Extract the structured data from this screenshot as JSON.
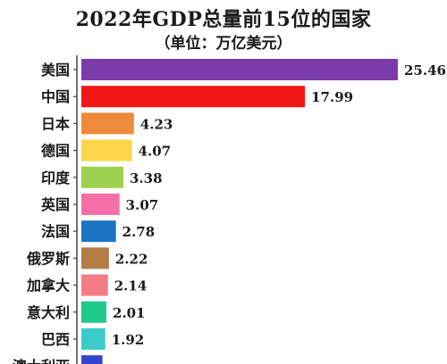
{
  "chart_data": {
    "type": "bar",
    "orientation": "horizontal",
    "title": "2022年GDP总量前15位的国家",
    "subtitle": "（单位：万亿美元）",
    "categories": [
      "美国",
      "中国",
      "日本",
      "德国",
      "印度",
      "英国",
      "法国",
      "俄罗斯",
      "加拿大",
      "意大利",
      "巴西",
      "澳大利亚"
    ],
    "values": [
      25.46,
      17.99,
      4.23,
      4.07,
      3.38,
      3.07,
      2.78,
      2.22,
      2.14,
      2.01,
      1.92,
      1.7
    ],
    "value_labels": [
      "25.46",
      "17.99",
      "4.23",
      "4.07",
      "3.38",
      "3.07",
      "2.78",
      "2.22",
      "2.14",
      "2.01",
      "1.92",
      ""
    ],
    "colors": [
      "#7B3BA8",
      "#F21616",
      "#EE8A3C",
      "#FFD54A",
      "#9ED24E",
      "#F46FA8",
      "#1A74C2",
      "#B57C45",
      "#F47C86",
      "#1FC989",
      "#3BCBCB",
      "#3344CC"
    ],
    "xlim": [
      0,
      25.46
    ],
    "grid": false,
    "legend": "none"
  }
}
